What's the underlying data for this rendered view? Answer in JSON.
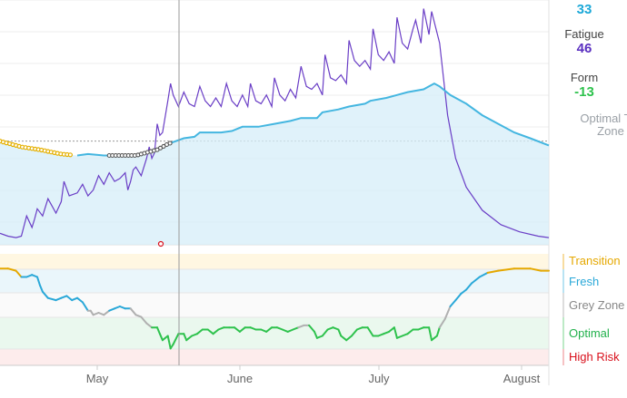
{
  "sidebar": {
    "fitness_value": "33",
    "fatigue_label": "Fatigue",
    "fatigue_value": "46",
    "form_label": "Form",
    "form_value": "-13",
    "optimal_text_line1": "Optimal Tra",
    "optimal_text_line2": "Zone"
  },
  "colors": {
    "fitness": "#1ba8d8",
    "fatigue": "#6a3ec6",
    "form": "#2ec24d",
    "transition": "#e5a800",
    "fresh": "#2aa8d8",
    "grey": "#aaaaaa",
    "high_risk": "#d9101c"
  },
  "zones": [
    {
      "name": "Transition",
      "color": "#e5a800"
    },
    {
      "name": "Fresh",
      "color": "#2aa8d8"
    },
    {
      "name": "Grey Zone",
      "color": "#888888"
    },
    {
      "name": "Optimal",
      "color": "#22b14c"
    },
    {
      "name": "High Risk",
      "color": "#d9101c"
    }
  ],
  "months": [
    "May",
    "June",
    "July",
    "August"
  ],
  "chart_data": {
    "type": "line",
    "x_unit": "days",
    "series": [
      {
        "key": "fatigue",
        "points": [
          [
            -3,
            8
          ],
          [
            0,
            6
          ],
          [
            3,
            5
          ],
          [
            5,
            6
          ],
          [
            7,
            20
          ],
          [
            9,
            12
          ],
          [
            10,
            18
          ],
          [
            11,
            25
          ],
          [
            13,
            20
          ],
          [
            15,
            32
          ],
          [
            18,
            22
          ],
          [
            20,
            30
          ],
          [
            21,
            44
          ],
          [
            23,
            34
          ],
          [
            26,
            36
          ],
          [
            28,
            42
          ],
          [
            30,
            34
          ],
          [
            32,
            38
          ],
          [
            34,
            48
          ],
          [
            36,
            42
          ],
          [
            38,
            50
          ],
          [
            40,
            44
          ],
          [
            42,
            46
          ],
          [
            44,
            50
          ],
          [
            45,
            38
          ],
          [
            46,
            44
          ],
          [
            47,
            52
          ],
          [
            48,
            54
          ],
          [
            50,
            48
          ],
          [
            52,
            60
          ],
          [
            53,
            68
          ],
          [
            54,
            60
          ],
          [
            55,
            64
          ],
          [
            56,
            84
          ],
          [
            57,
            76
          ],
          [
            58,
            78
          ],
          [
            60,
            100
          ],
          [
            61,
            112
          ],
          [
            62,
            104
          ],
          [
            64,
            96
          ],
          [
            66,
            106
          ],
          [
            68,
            98
          ],
          [
            70,
            96
          ],
          [
            72,
            110
          ],
          [
            74,
            100
          ],
          [
            76,
            96
          ],
          [
            78,
            102
          ],
          [
            80,
            96
          ],
          [
            82,
            112
          ],
          [
            84,
            100
          ],
          [
            86,
            96
          ],
          [
            88,
            104
          ],
          [
            90,
            96
          ],
          [
            91,
            112
          ],
          [
            93,
            100
          ],
          [
            95,
            98
          ],
          [
            97,
            104
          ],
          [
            99,
            96
          ],
          [
            100,
            116
          ],
          [
            102,
            104
          ],
          [
            104,
            100
          ],
          [
            106,
            108
          ],
          [
            108,
            102
          ],
          [
            110,
            124
          ],
          [
            112,
            110
          ],
          [
            114,
            108
          ],
          [
            116,
            112
          ],
          [
            118,
            104
          ],
          [
            119,
            132
          ],
          [
            121,
            116
          ],
          [
            123,
            114
          ],
          [
            125,
            118
          ],
          [
            127,
            112
          ],
          [
            128,
            142
          ],
          [
            130,
            128
          ],
          [
            132,
            124
          ],
          [
            134,
            128
          ],
          [
            136,
            122
          ],
          [
            137,
            150
          ],
          [
            139,
            132
          ],
          [
            141,
            128
          ],
          [
            143,
            134
          ],
          [
            145,
            126
          ],
          [
            146,
            158
          ],
          [
            148,
            140
          ],
          [
            150,
            136
          ],
          [
            152,
            150
          ],
          [
            153,
            156
          ],
          [
            155,
            140
          ],
          [
            156,
            164
          ],
          [
            158,
            146
          ],
          [
            159,
            162
          ],
          [
            162,
            140
          ],
          [
            165,
            90
          ],
          [
            168,
            60
          ],
          [
            172,
            40
          ],
          [
            178,
            24
          ],
          [
            185,
            14
          ],
          [
            192,
            9
          ],
          [
            199,
            6
          ],
          [
            203,
            5
          ]
        ]
      },
      {
        "key": "fitness",
        "points": [
          [
            -3,
            72
          ],
          [
            5,
            68
          ],
          [
            12,
            66
          ],
          [
            20,
            63
          ],
          [
            26,
            62
          ],
          [
            30,
            63
          ],
          [
            36,
            62
          ],
          [
            40,
            62
          ],
          [
            44,
            62
          ],
          [
            48,
            62
          ],
          [
            52,
            64
          ],
          [
            56,
            66
          ],
          [
            60,
            70
          ],
          [
            66,
            74
          ],
          [
            70,
            75
          ],
          [
            72,
            78
          ],
          [
            80,
            78
          ],
          [
            84,
            79
          ],
          [
            88,
            82
          ],
          [
            94,
            82
          ],
          [
            100,
            84
          ],
          [
            106,
            86
          ],
          [
            110,
            88
          ],
          [
            116,
            88
          ],
          [
            118,
            92
          ],
          [
            124,
            94
          ],
          [
            128,
            96
          ],
          [
            134,
            98
          ],
          [
            136,
            100
          ],
          [
            142,
            102
          ],
          [
            146,
            104
          ],
          [
            150,
            106
          ],
          [
            156,
            108
          ],
          [
            158,
            110
          ],
          [
            160,
            112
          ],
          [
            162,
            110
          ],
          [
            166,
            104
          ],
          [
            172,
            98
          ],
          [
            178,
            90
          ],
          [
            184,
            84
          ],
          [
            190,
            78
          ],
          [
            196,
            74
          ],
          [
            203,
            69
          ]
        ]
      },
      {
        "key": "form",
        "points": [
          [
            -3,
            -2
          ],
          [
            0,
            -2
          ],
          [
            3,
            -3
          ],
          [
            5,
            -6
          ],
          [
            7,
            -6
          ],
          [
            9,
            -5
          ],
          [
            11,
            -6
          ],
          [
            12,
            -10
          ],
          [
            13,
            -13
          ],
          [
            15,
            -16
          ],
          [
            18,
            -17
          ],
          [
            20,
            -16
          ],
          [
            22,
            -15
          ],
          [
            24,
            -17
          ],
          [
            26,
            -16
          ],
          [
            28,
            -18
          ],
          [
            30,
            -22
          ],
          [
            31,
            -22
          ],
          [
            32,
            -24
          ],
          [
            34,
            -23
          ],
          [
            36,
            -24
          ],
          [
            38,
            -22
          ],
          [
            40,
            -21
          ],
          [
            42,
            -20
          ],
          [
            44,
            -21
          ],
          [
            46,
            -21
          ],
          [
            48,
            -24
          ],
          [
            50,
            -25
          ],
          [
            52,
            -28
          ],
          [
            54,
            -30
          ],
          [
            56,
            -30
          ],
          [
            57,
            -33
          ],
          [
            58,
            -36
          ],
          [
            60,
            -34
          ],
          [
            61,
            -40
          ],
          [
            62,
            -38
          ],
          [
            64,
            -33
          ],
          [
            66,
            -33
          ],
          [
            67,
            -36
          ],
          [
            69,
            -34
          ],
          [
            71,
            -33
          ],
          [
            73,
            -31
          ],
          [
            75,
            -31
          ],
          [
            77,
            -33
          ],
          [
            79,
            -31
          ],
          [
            81,
            -30
          ],
          [
            83,
            -30
          ],
          [
            85,
            -30
          ],
          [
            87,
            -32
          ],
          [
            89,
            -30
          ],
          [
            91,
            -30
          ],
          [
            93,
            -31
          ],
          [
            95,
            -31
          ],
          [
            97,
            -32
          ],
          [
            99,
            -30
          ],
          [
            101,
            -30
          ],
          [
            103,
            -31
          ],
          [
            105,
            -32
          ],
          [
            107,
            -31
          ],
          [
            109,
            -30
          ],
          [
            111,
            -29
          ],
          [
            113,
            -29
          ],
          [
            115,
            -32
          ],
          [
            116,
            -35
          ],
          [
            118,
            -34
          ],
          [
            120,
            -31
          ],
          [
            122,
            -30
          ],
          [
            124,
            -31
          ],
          [
            125,
            -34
          ],
          [
            127,
            -36
          ],
          [
            129,
            -34
          ],
          [
            131,
            -31
          ],
          [
            133,
            -30
          ],
          [
            135,
            -30
          ],
          [
            137,
            -34
          ],
          [
            139,
            -34
          ],
          [
            141,
            -33
          ],
          [
            143,
            -32
          ],
          [
            145,
            -30
          ],
          [
            146,
            -35
          ],
          [
            148,
            -34
          ],
          [
            150,
            -33
          ],
          [
            152,
            -31
          ],
          [
            154,
            -31
          ],
          [
            156,
            -30
          ],
          [
            158,
            -30
          ],
          [
            159,
            -36
          ],
          [
            161,
            -34
          ],
          [
            162,
            -30
          ],
          [
            164,
            -26
          ],
          [
            166,
            -20
          ],
          [
            168,
            -17
          ],
          [
            170,
            -14
          ],
          [
            172,
            -12
          ],
          [
            174,
            -9
          ],
          [
            177,
            -6
          ],
          [
            180,
            -4
          ],
          [
            184,
            -3
          ],
          [
            190,
            -2
          ],
          [
            196,
            -2
          ],
          [
            200,
            -3
          ],
          [
            203,
            -3
          ]
        ]
      }
    ],
    "reference_line_y": 72
  }
}
